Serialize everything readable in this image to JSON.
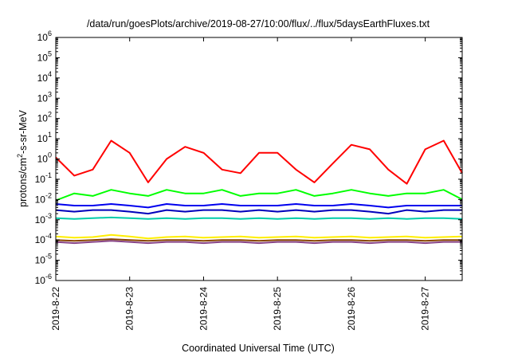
{
  "chart_data": {
    "type": "line",
    "title": "/data/run/goesPlots/archive/2019-08-27/10:00/flux/../flux/5daysEarthFluxes.txt",
    "xlabel": "Coordinated Universal Time (UTC)",
    "ylabel": "protons/cm2-s-sr-MeV",
    "ylabel_base": "protons/cm",
    "ylabel_sup": "2",
    "ylabel_rest": "-s-sr-MeV",
    "yscale": "log",
    "ylim": [
      1e-06,
      1000000.0
    ],
    "xlim": [
      "2019-08-22",
      "2019-08-27 12:00"
    ],
    "yticks": [
      {
        "base": "10",
        "exp": "-6"
      },
      {
        "base": "10",
        "exp": "-5"
      },
      {
        "base": "10",
        "exp": "-4"
      },
      {
        "base": "10",
        "exp": "-3"
      },
      {
        "base": "10",
        "exp": "-2"
      },
      {
        "base": "10",
        "exp": "-1"
      },
      {
        "base": "10",
        "exp": "0"
      },
      {
        "base": "10",
        "exp": "1"
      },
      {
        "base": "10",
        "exp": "2"
      },
      {
        "base": "10",
        "exp": "3"
      },
      {
        "base": "10",
        "exp": "4"
      },
      {
        "base": "10",
        "exp": "5"
      },
      {
        "base": "10",
        "exp": "6"
      }
    ],
    "xticks": [
      "2019-8-22",
      "2019-8-23",
      "2019-8-24",
      "2019-8-25",
      "2019-8-26",
      "2019-8-27"
    ],
    "grid": false,
    "x": [
      "2019-08-22 00:00",
      "2019-08-22 06:00",
      "2019-08-22 12:00",
      "2019-08-22 18:00",
      "2019-08-23 00:00",
      "2019-08-23 06:00",
      "2019-08-23 12:00",
      "2019-08-23 18:00",
      "2019-08-24 00:00",
      "2019-08-24 06:00",
      "2019-08-24 12:00",
      "2019-08-24 18:00",
      "2019-08-25 00:00",
      "2019-08-25 06:00",
      "2019-08-25 12:00",
      "2019-08-25 18:00",
      "2019-08-26 00:00",
      "2019-08-26 06:00",
      "2019-08-26 12:00",
      "2019-08-26 18:00",
      "2019-08-27 00:00",
      "2019-08-27 06:00",
      "2019-08-27 12:00"
    ],
    "series": [
      {
        "color": "#ff0000",
        "values": [
          1.2,
          0.15,
          0.3,
          8,
          2,
          0.07,
          1,
          4,
          2,
          0.3,
          0.2,
          2,
          2,
          0.3,
          0.07,
          0.6,
          5,
          3,
          0.3,
          0.06,
          3,
          8,
          0.2
        ]
      },
      {
        "color": "#00ff00",
        "values": [
          0.009,
          0.02,
          0.015,
          0.03,
          0.02,
          0.015,
          0.03,
          0.02,
          0.02,
          0.03,
          0.015,
          0.02,
          0.02,
          0.03,
          0.015,
          0.02,
          0.03,
          0.02,
          0.015,
          0.02,
          0.02,
          0.03,
          0.01
        ]
      },
      {
        "color": "#0000ee",
        "values": [
          0.006,
          0.005,
          0.005,
          0.006,
          0.005,
          0.004,
          0.006,
          0.005,
          0.005,
          0.006,
          0.005,
          0.005,
          0.005,
          0.006,
          0.005,
          0.005,
          0.006,
          0.005,
          0.004,
          0.005,
          0.005,
          0.005,
          0.005
        ]
      },
      {
        "color": "#0000bb",
        "values": [
          0.003,
          0.0025,
          0.003,
          0.003,
          0.0025,
          0.002,
          0.003,
          0.0025,
          0.003,
          0.003,
          0.0025,
          0.003,
          0.0025,
          0.003,
          0.0025,
          0.003,
          0.003,
          0.0025,
          0.002,
          0.003,
          0.0025,
          0.003,
          0.003
        ]
      },
      {
        "color": "#00ccaa",
        "values": [
          0.0012,
          0.0011,
          0.0012,
          0.0013,
          0.0012,
          0.0011,
          0.0012,
          0.0011,
          0.0012,
          0.0012,
          0.0011,
          0.0012,
          0.0011,
          0.0012,
          0.0011,
          0.0012,
          0.0012,
          0.0011,
          0.0012,
          0.0011,
          0.0012,
          0.0012,
          0.0011
        ]
      },
      {
        "color": "#ffee00",
        "values": [
          0.00015,
          0.00013,
          0.00014,
          0.00018,
          0.00015,
          0.00012,
          0.00014,
          0.00015,
          0.00013,
          0.00014,
          0.00015,
          0.00013,
          0.00014,
          0.00015,
          0.00013,
          0.00014,
          0.00015,
          0.00013,
          0.00014,
          0.00015,
          0.00013,
          0.00014,
          0.00015
        ]
      },
      {
        "color": "#884400",
        "values": [
          0.0001,
          9e-05,
          0.0001,
          0.00011,
          0.0001,
          9e-05,
          0.0001,
          0.0001,
          9e-05,
          0.0001,
          0.0001,
          9e-05,
          0.0001,
          0.0001,
          9e-05,
          0.0001,
          0.0001,
          9e-05,
          0.0001,
          0.0001,
          9e-05,
          0.0001,
          0.0001
        ]
      },
      {
        "color": "#884488",
        "values": [
          8e-05,
          7e-05,
          8e-05,
          9e-05,
          8e-05,
          7e-05,
          8e-05,
          8e-05,
          7e-05,
          8e-05,
          8e-05,
          7e-05,
          8e-05,
          8e-05,
          7e-05,
          8e-05,
          8e-05,
          7e-05,
          8e-05,
          8e-05,
          7e-05,
          8e-05,
          8e-05
        ]
      }
    ]
  }
}
